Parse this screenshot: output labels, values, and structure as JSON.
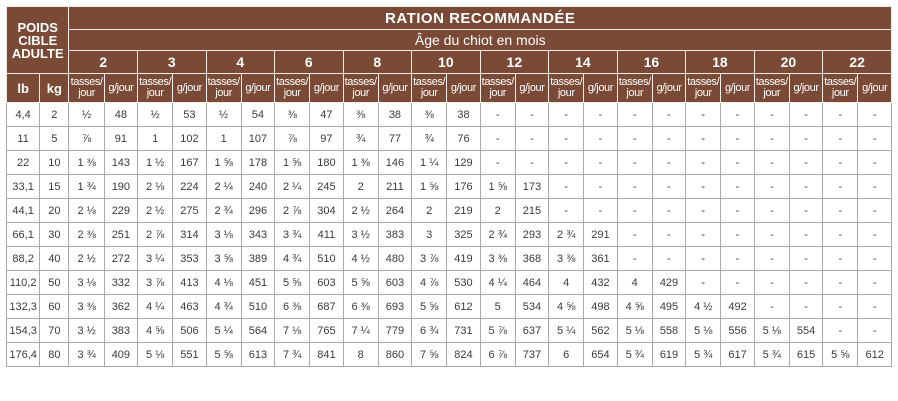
{
  "table": {
    "title": "RATION RECOMMANDÉE",
    "corner_label": "POIDS CIBLE ADULTE",
    "age_label": "Âge du chiot en mois",
    "unit_labels": [
      "lb",
      "kg"
    ],
    "months": [
      "2",
      "3",
      "4",
      "6",
      "8",
      "10",
      "12",
      "14",
      "16",
      "18",
      "20",
      "22"
    ],
    "sub_cups": "tasses/ jour",
    "sub_grams": "g/jour",
    "rows": [
      [
        "4,4",
        "2",
        "½",
        "48",
        "½",
        "53",
        "½",
        "54",
        "⅜",
        "47",
        "⅜",
        "38",
        "⅜",
        "38",
        "-",
        "-",
        "-",
        "-",
        "-",
        "-",
        "-",
        "-",
        "-",
        "-",
        "-",
        "-"
      ],
      [
        "11",
        "5",
        "⅞",
        "91",
        "1",
        "102",
        "1",
        "107",
        "⅞",
        "97",
        "¾",
        "77",
        "¾",
        "76",
        "-",
        "-",
        "-",
        "-",
        "-",
        "-",
        "-",
        "-",
        "-",
        "-",
        "-",
        "-"
      ],
      [
        "22",
        "10",
        "1 ⅜",
        "143",
        "1 ½",
        "167",
        "1 ⅝",
        "178",
        "1 ⅝",
        "180",
        "1 ⅜",
        "146",
        "1 ¼",
        "129",
        "-",
        "-",
        "-",
        "-",
        "-",
        "-",
        "-",
        "-",
        "-",
        "-",
        "-",
        "-"
      ],
      [
        "33,1",
        "15",
        "1 ¾",
        "190",
        "2 ⅛",
        "224",
        "2 ¼",
        "240",
        "2 ¼",
        "245",
        "2",
        "211",
        "1 ⅝",
        "176",
        "1 ⅝",
        "173",
        "-",
        "-",
        "-",
        "-",
        "-",
        "-",
        "-",
        "-",
        "-",
        "-"
      ],
      [
        "44,1",
        "20",
        "2 ⅛",
        "229",
        "2 ½",
        "275",
        "2 ¾",
        "296",
        "2 ⅞",
        "304",
        "2 ½",
        "264",
        "2",
        "219",
        "2",
        "215",
        "-",
        "-",
        "-",
        "-",
        "-",
        "-",
        "-",
        "-",
        "-",
        "-"
      ],
      [
        "66,1",
        "30",
        "2 ⅜",
        "251",
        "2 ⅞",
        "314",
        "3 ⅛",
        "343",
        "3 ¾",
        "411",
        "3 ½",
        "383",
        "3",
        "325",
        "2 ¾",
        "293",
        "2 ¾",
        "291",
        "-",
        "-",
        "-",
        "-",
        "-",
        "-",
        "-",
        "-"
      ],
      [
        "88,2",
        "40",
        "2 ½",
        "272",
        "3 ¼",
        "353",
        "3 ⅝",
        "389",
        "4 ¾",
        "510",
        "4 ½",
        "480",
        "3 ⅞",
        "419",
        "3 ⅜",
        "368",
        "3 ⅜",
        "361",
        "-",
        "-",
        "-",
        "-",
        "-",
        "-",
        "-",
        "-"
      ],
      [
        "110,2",
        "50",
        "3 ⅛",
        "332",
        "3 ⅞",
        "413",
        "4 ⅛",
        "451",
        "5 ⅝",
        "603",
        "5 ⅝",
        "603",
        "4 ⅞",
        "530",
        "4 ¼",
        "464",
        "4",
        "432",
        "4",
        "429",
        "-",
        "-",
        "-",
        "-",
        "-",
        "-"
      ],
      [
        "132,3",
        "60",
        "3 ⅜",
        "362",
        "4 ¼",
        "463",
        "4 ¾",
        "510",
        "6 ⅜",
        "687",
        "6 ⅜",
        "693",
        "5 ⅝",
        "612",
        "5",
        "534",
        "4 ⅝",
        "498",
        "4 ⅝",
        "495",
        "4 ½",
        "492",
        "-",
        "-",
        "-",
        "-"
      ],
      [
        "154,3",
        "70",
        "3 ½",
        "383",
        "4 ⅝",
        "506",
        "5 ¼",
        "564",
        "7 ⅛",
        "765",
        "7 ¼",
        "779",
        "6 ¾",
        "731",
        "5 ⅞",
        "637",
        "5 ¼",
        "562",
        "5 ⅛",
        "558",
        "5 ⅛",
        "556",
        "5 ⅛",
        "554",
        "-",
        "-"
      ],
      [
        "176,4",
        "80",
        "3 ¾",
        "409",
        "5 ⅛",
        "551",
        "5 ⅝",
        "613",
        "7 ¾",
        "841",
        "8",
        "860",
        "7 ⅝",
        "824",
        "6 ⅞",
        "737",
        "6",
        "654",
        "5 ¾",
        "619",
        "5 ¾",
        "617",
        "5 ¾",
        "615",
        "5 ⅝",
        "612"
      ]
    ]
  },
  "colors": {
    "header_background": "#7a4a36",
    "header_text": "#ffffff",
    "body_text": "#3a3a3a",
    "grid_line": "#a9aaa9"
  }
}
